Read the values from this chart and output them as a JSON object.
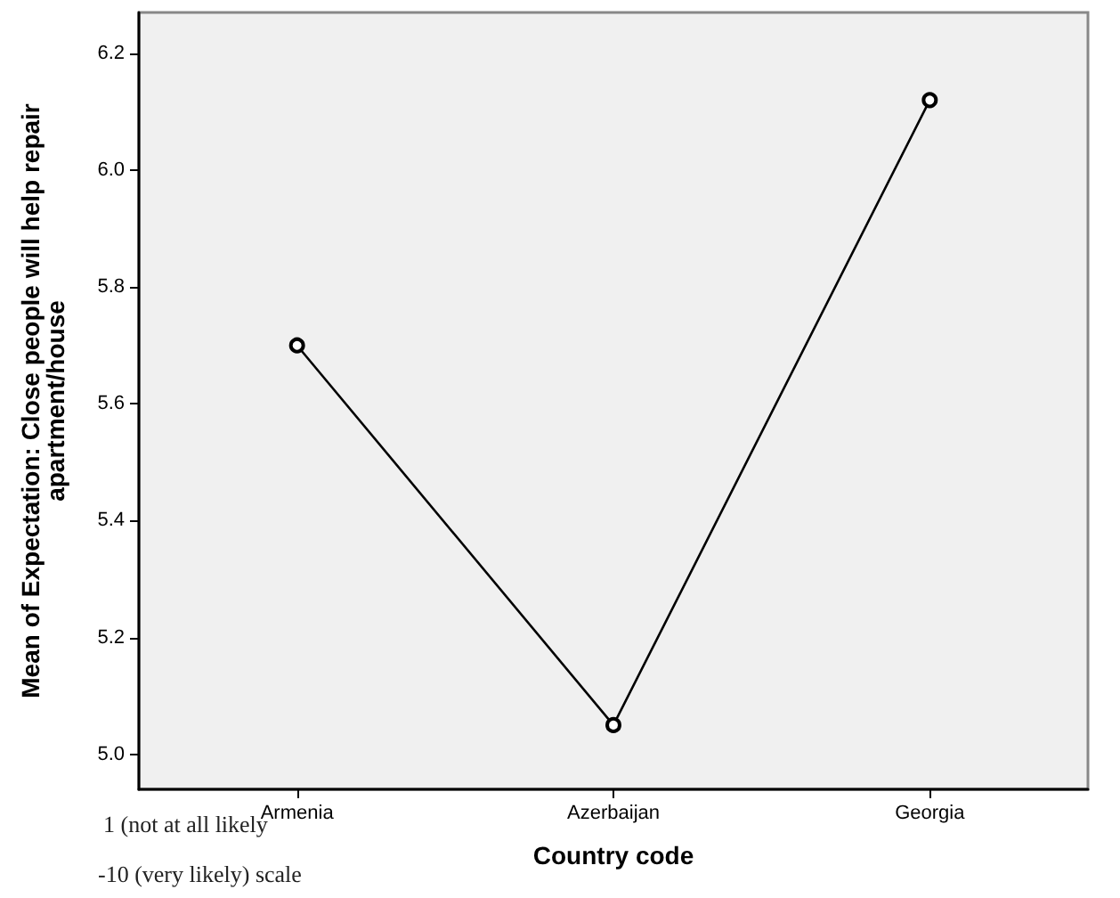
{
  "chart_data": {
    "type": "line",
    "xlabel": "Country code",
    "ylabel": "Mean of Expectation: Close people will help repair\napartment/house",
    "categories": [
      "Armenia",
      "Azerbaijan",
      "Georgia"
    ],
    "series": [
      {
        "color": "#000000",
        "values": [
          5.7,
          5.05,
          6.12
        ]
      }
    ],
    "ylim": [
      4.94,
      6.27
    ],
    "yticks": [
      {
        "value": 5,
        "label": "5.0"
      },
      5.2,
      5.4,
      5.6,
      5.8,
      {
        "value": 6,
        "label": "6.0"
      },
      6.2
    ],
    "grid": false,
    "marker": "circle",
    "line_style": "solid",
    "annotations": [
      "1 (not at all likely",
      "-10 (very likely) scale"
    ]
  }
}
